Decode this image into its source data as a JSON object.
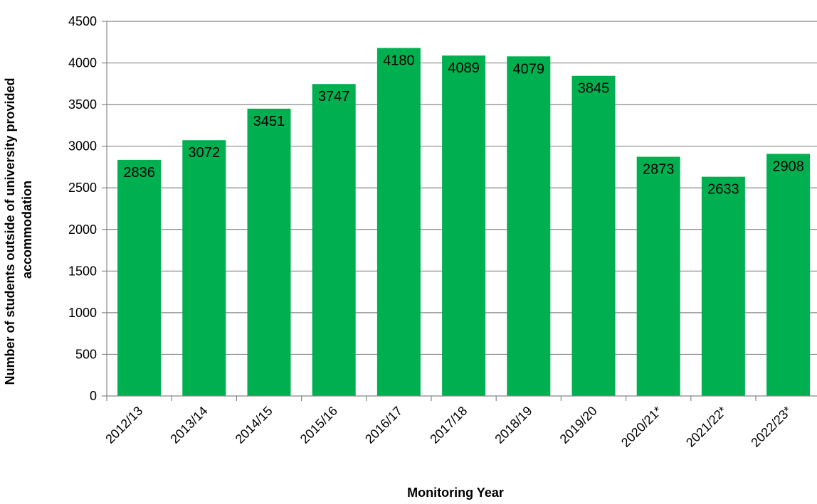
{
  "chart_data": {
    "type": "bar",
    "categories": [
      "2012/13",
      "2013/14",
      "2014/15",
      "2015/16",
      "2016/17",
      "2017/18",
      "2018/19",
      "2019/20",
      "2020/21*",
      "2021/22*",
      "2022/23*"
    ],
    "values": [
      2836,
      3072,
      3451,
      3747,
      4180,
      4089,
      4079,
      3845,
      2873,
      2633,
      2908
    ],
    "data_labels": [
      "2836",
      "3072",
      "3451",
      "3747",
      "4180",
      "4089",
      "4079",
      "3845",
      "2873",
      "2633",
      "2908"
    ],
    "xlabel": "Monitoring Year",
    "ylabel_lines": [
      "Number of students outside of university provided",
      "accommodation"
    ],
    "ylim": [
      0,
      4500
    ],
    "yticks": [
      0,
      500,
      1000,
      1500,
      2000,
      2500,
      3000,
      3500,
      4000,
      4500
    ],
    "grid": true,
    "legend": "none",
    "bar_color": "#00b050",
    "gridline_color": "#868686"
  }
}
